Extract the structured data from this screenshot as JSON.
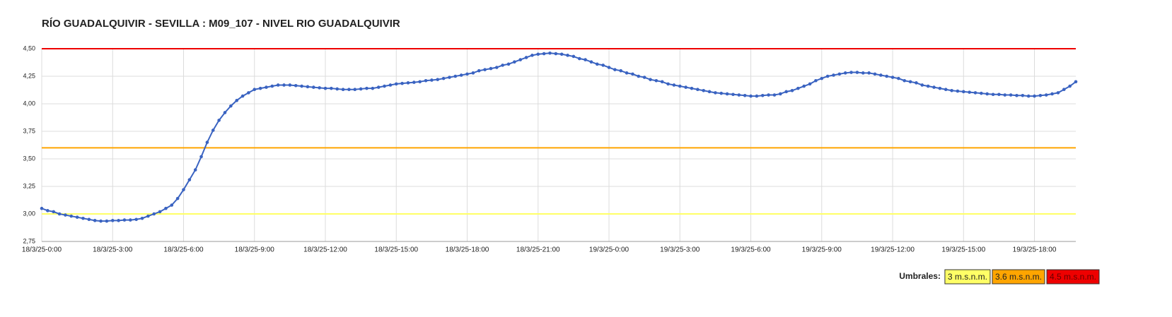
{
  "chart_data": {
    "type": "line",
    "title": "RÍO GUADALQUIVIR - SEVILLA : M09_107 - NIVEL RIO GUADALQUIVIR",
    "categories": [
      "18/3/25-0:00",
      null,
      null,
      null,
      null,
      null,
      null,
      null,
      null,
      null,
      null,
      null,
      "18/3/25-3:00",
      null,
      null,
      null,
      null,
      null,
      null,
      null,
      null,
      null,
      null,
      null,
      "18/3/25-6:00",
      null,
      null,
      null,
      null,
      null,
      null,
      null,
      null,
      null,
      null,
      null,
      "18/3/25-9:00",
      null,
      null,
      null,
      null,
      null,
      null,
      null,
      null,
      null,
      null,
      null,
      "18/3/25-12:00",
      null,
      null,
      null,
      null,
      null,
      null,
      null,
      null,
      null,
      null,
      null,
      "18/3/25-15:00",
      null,
      null,
      null,
      null,
      null,
      null,
      null,
      null,
      null,
      null,
      null,
      "18/3/25-18:00",
      null,
      null,
      null,
      null,
      null,
      null,
      null,
      null,
      null,
      null,
      null,
      "18/3/25-21:00",
      null,
      null,
      null,
      null,
      null,
      null,
      null,
      null,
      null,
      null,
      null,
      "19/3/25-0:00",
      null,
      null,
      null,
      null,
      null,
      null,
      null,
      null,
      null,
      null,
      null,
      "19/3/25-3:00",
      null,
      null,
      null,
      null,
      null,
      null,
      null,
      null,
      null,
      null,
      null,
      "19/3/25-6:00",
      null,
      null,
      null,
      null,
      null,
      null,
      null,
      null,
      null,
      null,
      null,
      "19/3/25-9:00",
      null,
      null,
      null,
      null,
      null,
      null,
      null,
      null,
      null,
      null,
      null,
      "19/3/25-12:00",
      null,
      null,
      null,
      null,
      null,
      null,
      null,
      null,
      null,
      null,
      null,
      "19/3/25-15:00",
      null,
      null,
      null,
      null,
      null,
      null,
      null,
      null,
      null,
      null,
      null,
      "19/3/25-18:00",
      null,
      null,
      null,
      null,
      null,
      null,
      null
    ],
    "values": [
      3.05,
      3.03,
      3.02,
      3.0,
      2.99,
      2.98,
      2.97,
      2.96,
      2.95,
      2.94,
      2.935,
      2.935,
      2.94,
      2.94,
      2.945,
      2.945,
      2.95,
      2.96,
      2.98,
      3.0,
      3.02,
      3.05,
      3.08,
      3.14,
      3.22,
      3.31,
      3.4,
      3.52,
      3.65,
      3.76,
      3.85,
      3.92,
      3.98,
      4.03,
      4.07,
      4.1,
      4.13,
      4.14,
      4.15,
      4.16,
      4.17,
      4.17,
      4.17,
      4.165,
      4.16,
      4.155,
      4.15,
      4.145,
      4.14,
      4.14,
      4.135,
      4.13,
      4.13,
      4.13,
      4.135,
      4.14,
      4.14,
      4.15,
      4.16,
      4.17,
      4.18,
      4.185,
      4.19,
      4.195,
      4.2,
      4.21,
      4.215,
      4.22,
      4.23,
      4.24,
      4.25,
      4.26,
      4.27,
      4.28,
      4.3,
      4.31,
      4.32,
      4.33,
      4.35,
      4.36,
      4.38,
      4.4,
      4.42,
      4.44,
      4.45,
      4.455,
      4.46,
      4.455,
      4.45,
      4.44,
      4.43,
      4.41,
      4.4,
      4.38,
      4.36,
      4.35,
      4.33,
      4.31,
      4.3,
      4.28,
      4.27,
      4.25,
      4.24,
      4.22,
      4.21,
      4.2,
      4.18,
      4.17,
      4.16,
      4.15,
      4.14,
      4.13,
      4.12,
      4.11,
      4.1,
      4.095,
      4.09,
      4.085,
      4.08,
      4.075,
      4.07,
      4.07,
      4.075,
      4.08,
      4.08,
      4.09,
      4.11,
      4.12,
      4.14,
      4.16,
      4.18,
      4.21,
      4.23,
      4.25,
      4.26,
      4.27,
      4.28,
      4.285,
      4.285,
      4.28,
      4.28,
      4.27,
      4.26,
      4.25,
      4.24,
      4.23,
      4.21,
      4.2,
      4.19,
      4.17,
      4.16,
      4.15,
      4.14,
      4.13,
      4.12,
      4.115,
      4.11,
      4.105,
      4.1,
      4.095,
      4.09,
      4.085,
      4.085,
      4.08,
      4.08,
      4.075,
      4.075,
      4.07,
      4.07,
      4.075,
      4.08,
      4.09,
      4.1,
      4.13,
      4.16,
      4.2
    ],
    "color": "#3a63c1",
    "ylim": [
      2.75,
      4.5
    ],
    "yticks": [
      {
        "value": 2.75,
        "label": "2,75"
      },
      {
        "value": 3,
        "label": "3,00"
      },
      {
        "value": 3.25,
        "label": "3,25"
      },
      {
        "value": 3.5,
        "label": "3,50"
      },
      {
        "value": 3.75,
        "label": "3,75"
      },
      {
        "value": 4,
        "label": "4,00"
      },
      {
        "value": 4.25,
        "label": "4,25"
      },
      {
        "value": 4.5,
        "label": "4,50"
      }
    ],
    "grid": true,
    "legend_title": "Umbrales:",
    "thresholds": [
      {
        "value": 3,
        "label": "3 m.s.n.m.",
        "color": "#ffff66"
      },
      {
        "value": 3.6,
        "label": "3.6 m.s.n.m.",
        "color": "#ffa500"
      },
      {
        "value": 4.5,
        "label": "4.5 m.s.n.m.",
        "color": "#ee0000"
      }
    ]
  }
}
